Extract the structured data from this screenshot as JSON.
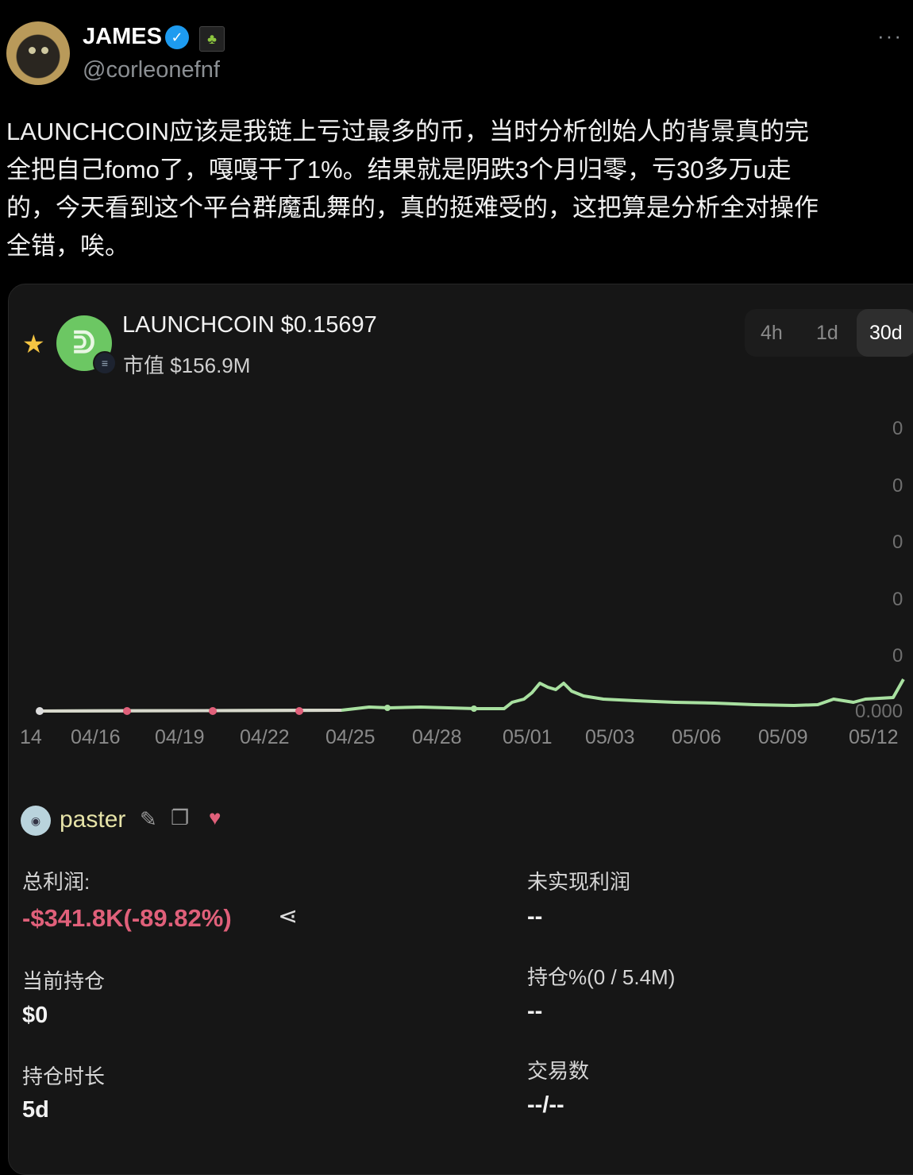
{
  "tweet": {
    "display_name": "JAMES",
    "handle": "@corleonefnf",
    "verified_icon": "verified-badge-icon",
    "affiliate_badge_icon": "frog-badge-icon",
    "more_icon": "···",
    "text_lines": [
      "LAUNCHCOIN应该是我链上亏过最多的币，当时分析创始人的背景真的完",
      "全把自己fomo了，嘎嘎干了1%。结果就是阴跌3个月归零，亏30多万u走",
      "的，今天看到这个平台群魔乱舞的，真的挺难受的，这把算是分析全对操作",
      "全错，唉。"
    ]
  },
  "card": {
    "coin_name_price": "LAUNCHCOIN $0.15697",
    "market_cap": "市值 $156.9M",
    "timeframes": [
      "4h",
      "1d",
      "30d"
    ],
    "active_timeframe": "30d",
    "chart": {
      "x_ticks": [
        "14",
        "04/16",
        "04/19",
        "04/22",
        "04/25",
        "04/28",
        "05/01",
        "05/03",
        "05/06",
        "05/09",
        "05/12"
      ],
      "y_ticks": [
        "0",
        "0",
        "0",
        "0",
        "0",
        "0.000"
      ],
      "line_color": "#a8e0a0",
      "sell_marker_color": "#e0607a"
    },
    "wallet": {
      "name": "paster",
      "icons": [
        "edit-icon",
        "copy-icon",
        "heart-icon"
      ]
    },
    "stats": {
      "total_profit_label": "总利润:",
      "total_profit_value": "-$341.8K(-89.82%)",
      "unrealized_label": "未实现利润",
      "unrealized_value": "--",
      "holding_label": "当前持仓",
      "holding_value": "$0",
      "holding_pct_label": "持仓%(0 / 5.4M)",
      "holding_pct_value": "--",
      "duration_label": "持仓时长",
      "duration_value": "5d",
      "trades_label": "交易数",
      "trades_value": "--/--"
    }
  }
}
